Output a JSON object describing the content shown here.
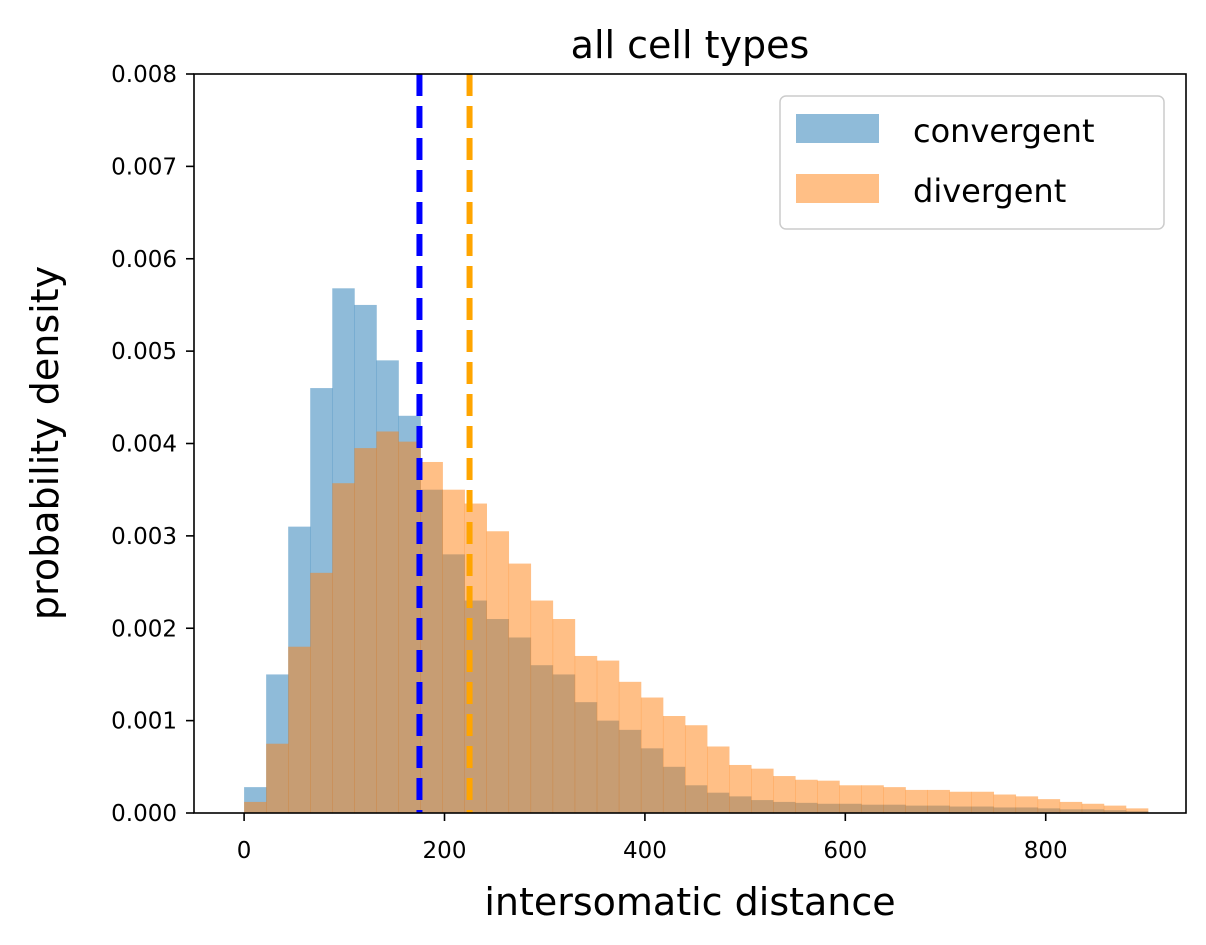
{
  "chart_data": {
    "type": "histogram",
    "title": "all cell types",
    "xlabel": "intersomatic distance",
    "ylabel": "probability density",
    "xlim": [
      -50,
      940
    ],
    "ylim": [
      0,
      0.008
    ],
    "x_ticks": [
      0,
      200,
      400,
      600,
      800
    ],
    "x_tick_labels": [
      "0",
      "200",
      "400",
      "600",
      "800"
    ],
    "y_ticks": [
      0,
      0.001,
      0.002,
      0.003,
      0.004,
      0.005,
      0.006,
      0.007,
      0.008
    ],
    "y_tick_labels": [
      "0.000",
      "0.001",
      "0.002",
      "0.003",
      "0.004",
      "0.005",
      "0.006",
      "0.007",
      "0.008"
    ],
    "bin_width": 22,
    "bin_start": 0,
    "legend_position": "top-right",
    "grid": false,
    "series": [
      {
        "name": "convergent",
        "color": "#1f77b4",
        "alpha": 0.5,
        "values": [
          0.00028,
          0.0015,
          0.0031,
          0.0046,
          0.00568,
          0.0055,
          0.0049,
          0.0043,
          0.0035,
          0.0028,
          0.0023,
          0.0021,
          0.0019,
          0.0016,
          0.0015,
          0.0012,
          0.001,
          0.0009,
          0.0007,
          0.0005,
          0.0003,
          0.00022,
          0.00018,
          0.00014,
          0.00012,
          0.00011,
          0.0001,
          0.0001,
          9e-05,
          9e-05,
          8e-05,
          8e-05,
          7e-05,
          7e-05,
          6e-05,
          6e-05,
          5e-05,
          4e-05,
          4e-05,
          3e-05,
          2e-05
        ]
      },
      {
        "name": "divergent",
        "color": "#ff7f0e",
        "alpha": 0.5,
        "values": [
          0.00012,
          0.00075,
          0.0018,
          0.0026,
          0.00357,
          0.00395,
          0.00413,
          0.00402,
          0.0038,
          0.0035,
          0.00335,
          0.00305,
          0.0027,
          0.0023,
          0.0021,
          0.0017,
          0.00165,
          0.00142,
          0.00125,
          0.00105,
          0.00095,
          0.00072,
          0.00052,
          0.00048,
          0.0004,
          0.00036,
          0.00035,
          0.0003,
          0.0003,
          0.00028,
          0.00025,
          0.00025,
          0.00023,
          0.00023,
          0.0002,
          0.00018,
          0.00015,
          0.00012,
          0.0001,
          8e-05,
          5e-05
        ]
      }
    ],
    "vlines": [
      {
        "x": 175,
        "color": "#0000ff",
        "style": "dashed"
      },
      {
        "x": 225,
        "color": "#ffa500",
        "style": "dashed"
      }
    ]
  }
}
